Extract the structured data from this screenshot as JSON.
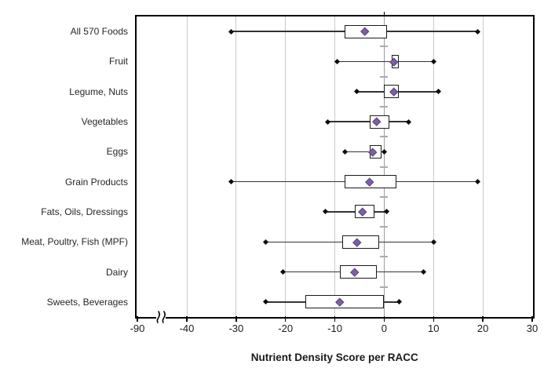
{
  "chart_data": {
    "type": "boxplot",
    "orientation": "horizontal",
    "title": "",
    "xlabel": "Nutrient Density Score per RACC",
    "ylabel": "",
    "x_ticks": [
      -90,
      -40,
      -30,
      -20,
      -10,
      0,
      10,
      20,
      30
    ],
    "x_axis_break": {
      "present": true,
      "between": [
        -90,
        -40
      ]
    },
    "plotted_xlim": [
      -40,
      30
    ],
    "grid": "vertical-gridlines-on",
    "median_line_shown": false,
    "marker_meaning": {
      "diamond": "mean",
      "box": "interquartile range",
      "cap_dots": "min and max whisker ends"
    },
    "series": [
      {
        "label": "All 570 Foods",
        "min": -31,
        "q1": -8,
        "mean": -4,
        "q3": 0.5,
        "max": 19
      },
      {
        "label": "Fruit",
        "min": -9.5,
        "q1": 1.5,
        "mean": 2,
        "q3": 3,
        "max": 10
      },
      {
        "label": "Legume, Nuts",
        "min": -5.5,
        "q1": 0,
        "mean": 2,
        "q3": 3,
        "max": 11
      },
      {
        "label": "Vegetables",
        "min": -11.5,
        "q1": -3,
        "mean": -1.5,
        "q3": 1,
        "max": 5
      },
      {
        "label": "Eggs",
        "min": -8,
        "q1": -3,
        "mean": -2.3,
        "q3": -0.5,
        "max": 0
      },
      {
        "label": "Grain Products",
        "min": -31,
        "q1": -8,
        "mean": -3,
        "q3": 2.5,
        "max": 19
      },
      {
        "label": "Fats, Oils, Dressings",
        "min": -12,
        "q1": -6,
        "mean": -4.4,
        "q3": -2,
        "max": 0.5
      },
      {
        "label": "Meat, Poultry, Fish (MPF)",
        "min": -24,
        "q1": -8.5,
        "mean": -5.5,
        "q3": -1,
        "max": 10
      },
      {
        "label": "Dairy",
        "min": -20.5,
        "q1": -9,
        "mean": -6,
        "q3": -1.5,
        "max": 8
      },
      {
        "label": "Sweets, Beverages",
        "min": -24,
        "q1": -16,
        "mean": -9,
        "q3": 0,
        "max": 3
      }
    ],
    "colors": {
      "mean_marker": "#7d60a0",
      "mean_marker_border": "#5a4380",
      "box_fill": "#ffffff",
      "box_border": "#1a1a1a",
      "whisker": "#333333",
      "gridline": "#c9c9c9",
      "zero_axis_line": "#9c9c9c",
      "frame": "#000000"
    }
  }
}
